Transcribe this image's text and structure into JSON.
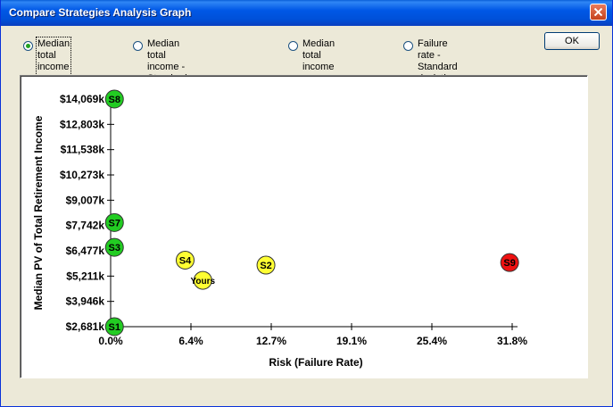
{
  "window": {
    "title": "Compare Strategies Analysis Graph"
  },
  "options": [
    {
      "label": "Median total income -\nFailure rate",
      "checked": true
    },
    {
      "label": "Median total income - Standard\ndeviation of total  income",
      "checked": false
    },
    {
      "label": "Median total income -\nLegacy",
      "checked": false
    },
    {
      "label": "Failure rate - Standard\ndeviation of annual income",
      "checked": false
    }
  ],
  "buttons": {
    "ok": "OK"
  },
  "chart_data": {
    "type": "scatter",
    "xlabel": "Risk (Failure Rate)",
    "ylabel": "Median PV of Total Retirement Income",
    "xlim": [
      0,
      31.8
    ],
    "ylim": [
      2681,
      14069
    ],
    "x_ticks": [
      "0.0%",
      "6.4%",
      "12.7%",
      "19.1%",
      "25.4%",
      "31.8%"
    ],
    "y_ticks": [
      "$2,681k",
      "$3,946k",
      "$5,211k",
      "$6,477k",
      "$7,742k",
      "$9,007k",
      "$10,273k",
      "$11,538k",
      "$12,803k",
      "$14,069k"
    ],
    "points": [
      {
        "label": "S8",
        "x": 0.3,
        "y": 14069,
        "color": "#22cc22"
      },
      {
        "label": "S7",
        "x": 0.3,
        "y": 7890,
        "color": "#22cc22"
      },
      {
        "label": "S3",
        "x": 0.3,
        "y": 6650,
        "color": "#22cc22"
      },
      {
        "label": "S1",
        "x": 0.3,
        "y": 2681,
        "color": "#22cc22"
      },
      {
        "label": "S4",
        "x": 5.9,
        "y": 6010,
        "color": "#ffff33"
      },
      {
        "label": "Yours",
        "x": 7.3,
        "y": 5000,
        "color": "#ffff33"
      },
      {
        "label": "S2",
        "x": 12.3,
        "y": 5760,
        "color": "#ffff33"
      },
      {
        "label": "S9",
        "x": 31.6,
        "y": 5890,
        "color": "#ee1111"
      }
    ]
  }
}
